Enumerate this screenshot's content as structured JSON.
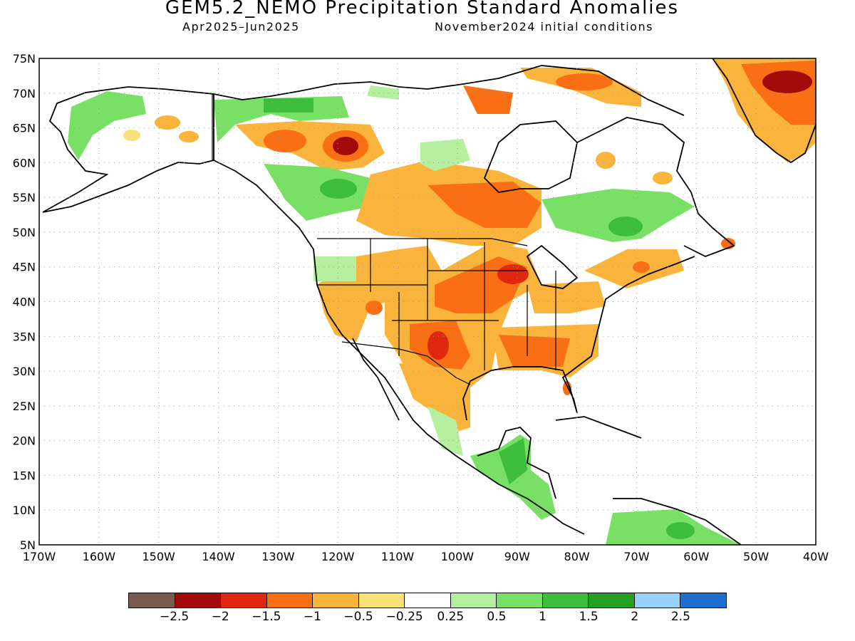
{
  "title": "GEM5.2_NEMO Precipitation Standard Anomalies",
  "period": "Apr2025–Jun2025",
  "init": "November2024 initial conditions",
  "map": {
    "type": "map",
    "lat_ticks": [
      "75N",
      "70N",
      "65N",
      "60N",
      "55N",
      "50N",
      "45N",
      "40N",
      "35N",
      "30N",
      "25N",
      "20N",
      "15N",
      "10N",
      "5N"
    ],
    "lon_ticks": [
      "170W",
      "160W",
      "150W",
      "140W",
      "130W",
      "120W",
      "110W",
      "100W",
      "90W",
      "80W",
      "70W",
      "60W",
      "50W",
      "40W"
    ],
    "lon_range": [
      -170,
      -40
    ],
    "lat_range": [
      5,
      75
    ],
    "grid": "dotted"
  },
  "colorbar": {
    "colors": [
      "#7b5a50",
      "#a50a0a",
      "#e02810",
      "#fa6e14",
      "#fab43c",
      "#fae178",
      "#ffffff",
      "#b4f0a0",
      "#78e064",
      "#3cbe3c",
      "#23a023",
      "#96d2fa",
      "#1e6ed2"
    ],
    "labels": [
      "−2.5",
      "−2",
      "−1.5",
      "−1",
      "−0.5",
      "−0.25",
      "0.25",
      "0.5",
      "1",
      "1.5",
      "2",
      "2.5"
    ]
  },
  "anomaly_regions": [
    {
      "region": "Greenland south/east",
      "category": "dry"
    },
    {
      "region": "Texas / Southern Plains",
      "category": "dry"
    },
    {
      "region": "Upper Midwest",
      "category": "dry"
    },
    {
      "region": "Northwest Territories",
      "category": "very dry"
    },
    {
      "region": "Central America",
      "category": "wet"
    },
    {
      "region": "Northern South America",
      "category": "wet"
    },
    {
      "region": "Alaska north slope",
      "category": "wet"
    },
    {
      "region": "Quebec / Labrador",
      "category": "wet"
    }
  ]
}
